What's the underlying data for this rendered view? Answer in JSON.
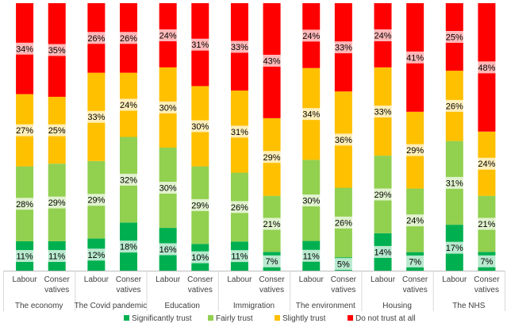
{
  "chart_data": {
    "type": "bar",
    "stacked": true,
    "normalized": true,
    "groups": [
      {
        "name": "The economy",
        "bars": [
          "Labour",
          "Conser vatives"
        ]
      },
      {
        "name": "The Covid pandemic",
        "bars": [
          "Labour",
          "Conser vatives"
        ]
      },
      {
        "name": "Education",
        "bars": [
          "Labour",
          "Conser vatives"
        ]
      },
      {
        "name": "Immigration",
        "bars": [
          "Labour",
          "Conser vatives"
        ]
      },
      {
        "name": "The environment",
        "bars": [
          "Labour",
          "Conser vatives"
        ]
      },
      {
        "name": "Housing",
        "bars": [
          "Labour",
          "Conser vatives"
        ]
      },
      {
        "name": "The NHS",
        "bars": [
          "Labour",
          "Conser vatives"
        ]
      }
    ],
    "series": [
      {
        "name": "Significantly trust",
        "color": "#00b050",
        "values": [
          11,
          11,
          12,
          18,
          16,
          10,
          11,
          7,
          11,
          5,
          14,
          7,
          17,
          7
        ]
      },
      {
        "name": "Fairly trust",
        "color": "#92d050",
        "values": [
          28,
          29,
          29,
          32,
          30,
          29,
          26,
          21,
          30,
          26,
          29,
          24,
          31,
          21
        ]
      },
      {
        "name": "Slightly trust",
        "color": "#ffc000",
        "values": [
          27,
          25,
          33,
          24,
          30,
          30,
          31,
          29,
          34,
          36,
          33,
          29,
          26,
          24
        ]
      },
      {
        "name": "Do not trust at all",
        "color": "#ff0000",
        "values": [
          34,
          35,
          26,
          26,
          24,
          31,
          33,
          43,
          24,
          33,
          24,
          41,
          25,
          48
        ]
      }
    ],
    "value_suffix": "%",
    "legend_position": "bottom",
    "grid": false
  }
}
